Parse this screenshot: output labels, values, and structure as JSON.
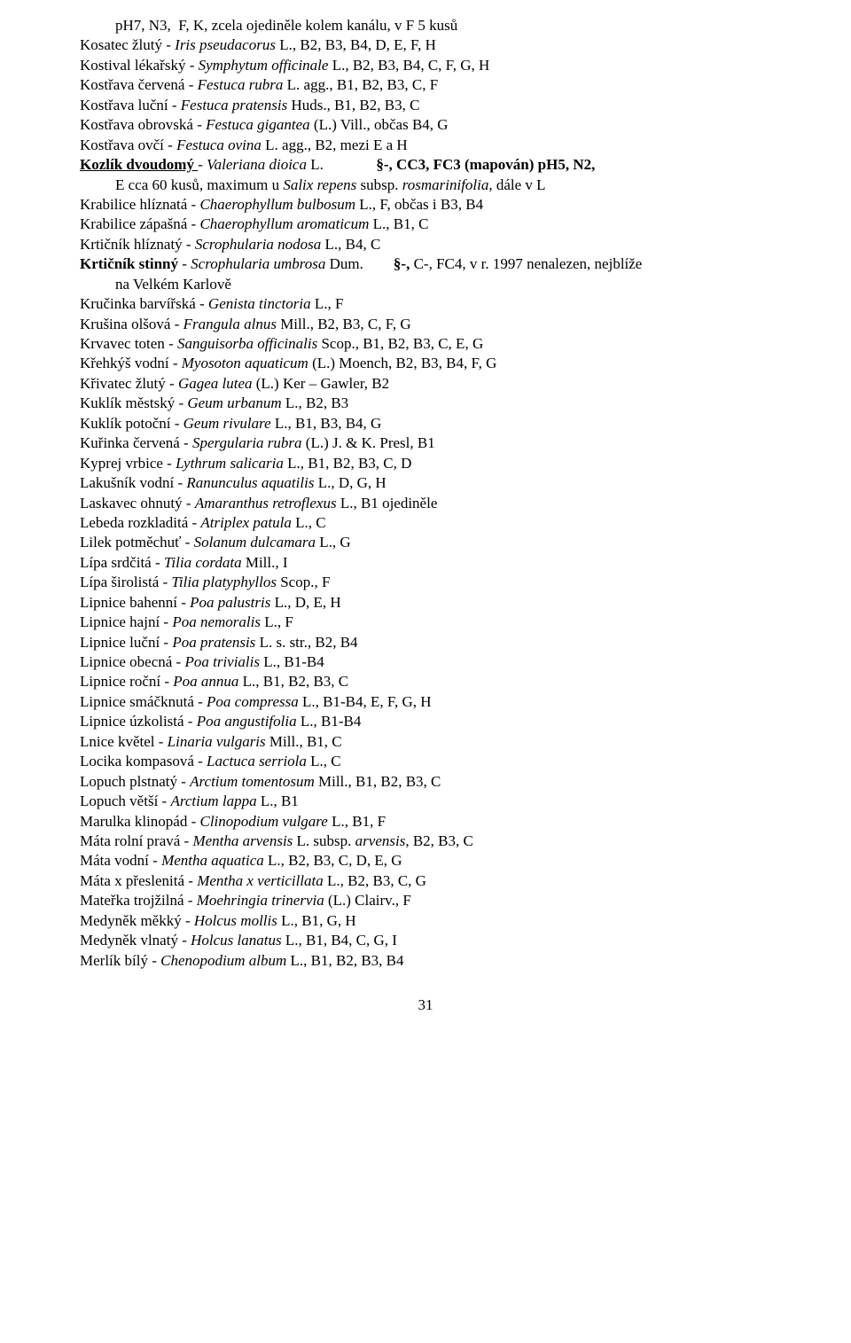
{
  "page_number": "31",
  "font": {
    "family": "Times New Roman",
    "size_pt": 12,
    "color": "#000000",
    "bg": "#ffffff"
  },
  "lines": [
    {
      "indent": true,
      "segs": [
        {
          "t": "pH7, N3,  F, K, zcela ojediněle kolem kanálu, v F 5 kusů"
        }
      ]
    },
    {
      "segs": [
        {
          "t": "Kosatec žlutý - "
        },
        {
          "t": "Iris pseudacorus ",
          "i": true
        },
        {
          "t": "L., B2, B3, B4, D, E, F, H"
        }
      ]
    },
    {
      "segs": [
        {
          "t": "Kostival lékařský - "
        },
        {
          "t": "Symphytum officinale ",
          "i": true
        },
        {
          "t": "L., B2, B3, B4, C, F, G, H"
        }
      ]
    },
    {
      "segs": [
        {
          "t": "Kostřava červená - "
        },
        {
          "t": "Festuca rubra ",
          "i": true
        },
        {
          "t": "L. agg., B1, B2, B3, C, F"
        }
      ]
    },
    {
      "segs": [
        {
          "t": "Kostřava luční - "
        },
        {
          "t": "Festuca pratensis ",
          "i": true
        },
        {
          "t": "Huds., B1, B2, B3, C"
        }
      ]
    },
    {
      "segs": [
        {
          "t": "Kostřava obrovská - "
        },
        {
          "t": "Festuca gigantea ",
          "i": true
        },
        {
          "t": "(L.) Vill., občas B4, G"
        }
      ]
    },
    {
      "segs": [
        {
          "t": "Kostřava ovčí - "
        },
        {
          "t": "Festuca ovina ",
          "i": true
        },
        {
          "t": "L. agg., B2, mezi E a H"
        }
      ]
    },
    {
      "segs": [
        {
          "t": "Kozlík dvoudomý ",
          "b": true,
          "u": true
        },
        {
          "t": "- "
        },
        {
          "t": "Valeriana dioica ",
          "i": true
        },
        {
          "t": "L.              "
        },
        {
          "t": "§-, CC3, FC3 (mapován) pH5, N2,",
          "b": true
        }
      ]
    },
    {
      "indent": true,
      "segs": [
        {
          "t": "E cca 60 kusů, maximum u "
        },
        {
          "t": "Salix repens ",
          "i": true
        },
        {
          "t": "subsp. "
        },
        {
          "t": "rosmarinifolia",
          "i": true
        },
        {
          "t": ", dále v L"
        }
      ]
    },
    {
      "segs": [
        {
          "t": "Krabilice hlíznatá - "
        },
        {
          "t": "Chaerophyllum bulbosum ",
          "i": true
        },
        {
          "t": "L., F, občas i B3, B4"
        }
      ]
    },
    {
      "segs": [
        {
          "t": "Krabilice zápašná - "
        },
        {
          "t": "Chaerophyllum aromaticum ",
          "i": true
        },
        {
          "t": "L., B1, C"
        }
      ]
    },
    {
      "segs": [
        {
          "t": "Krtičník hlíznatý - "
        },
        {
          "t": "Scrophularia nodosa ",
          "i": true
        },
        {
          "t": "L., B4, C"
        }
      ]
    },
    {
      "segs": [
        {
          "t": "Krtičník stinný",
          "b": true
        },
        {
          "t": " - "
        },
        {
          "t": "Scrophularia umbrosa ",
          "i": true
        },
        {
          "t": "Dum.        "
        },
        {
          "t": "§-, ",
          "b": true
        },
        {
          "t": "C-, FC4, v r. 1997 nenalezen, nejblíže"
        }
      ]
    },
    {
      "indent": true,
      "segs": [
        {
          "t": "na Velkém Karlově"
        }
      ]
    },
    {
      "segs": [
        {
          "t": "Kručinka barvířská - "
        },
        {
          "t": "Genista tinctoria ",
          "i": true
        },
        {
          "t": "L., F"
        }
      ]
    },
    {
      "segs": [
        {
          "t": "Krušina olšová - "
        },
        {
          "t": "Frangula alnus ",
          "i": true
        },
        {
          "t": "Mill., B2, B3, C, F, G"
        }
      ]
    },
    {
      "segs": [
        {
          "t": "Krvavec toten - "
        },
        {
          "t": "Sanguisorba officinalis ",
          "i": true
        },
        {
          "t": "Scop., B1, B2, B3, C, E, G"
        }
      ]
    },
    {
      "segs": [
        {
          "t": "Křehkýš vodní - "
        },
        {
          "t": "Myosoton aquaticum ",
          "i": true
        },
        {
          "t": "(L.) Moench, B2, B3, B4, F, G"
        }
      ]
    },
    {
      "segs": [
        {
          "t": "Křivatec žlutý - "
        },
        {
          "t": "Gagea lutea ",
          "i": true
        },
        {
          "t": "(L.) Ker – Gawler, B2"
        }
      ]
    },
    {
      "segs": [
        {
          "t": "Kuklík městský - "
        },
        {
          "t": "Geum urbanum ",
          "i": true
        },
        {
          "t": "L., B2, B3"
        }
      ]
    },
    {
      "segs": [
        {
          "t": "Kuklík potoční - "
        },
        {
          "t": "Geum rivulare ",
          "i": true
        },
        {
          "t": "L., B1, B3, B4, G"
        }
      ]
    },
    {
      "segs": [
        {
          "t": "Kuřinka červená - "
        },
        {
          "t": "Spergularia rubra ",
          "i": true
        },
        {
          "t": "(L.) J. & K. Presl, B1"
        }
      ]
    },
    {
      "segs": [
        {
          "t": "Kyprej vrbice - "
        },
        {
          "t": "Lythrum salicaria ",
          "i": true
        },
        {
          "t": "L., B1, B2, B3, C, D"
        }
      ]
    },
    {
      "segs": [
        {
          "t": "Lakušník vodní - "
        },
        {
          "t": "Ranunculus aquatilis ",
          "i": true
        },
        {
          "t": "L., D, G, H"
        }
      ]
    },
    {
      "segs": [
        {
          "t": "Laskavec ohnutý - "
        },
        {
          "t": "Amaranthus retroflexus ",
          "i": true
        },
        {
          "t": "L., B1 ojediněle"
        }
      ]
    },
    {
      "segs": [
        {
          "t": "Lebeda rozkladitá - "
        },
        {
          "t": "Atriplex patula ",
          "i": true
        },
        {
          "t": "L., C"
        }
      ]
    },
    {
      "segs": [
        {
          "t": "Lilek potměchuť - "
        },
        {
          "t": "Solanum dulcamara ",
          "i": true
        },
        {
          "t": "L., G"
        }
      ]
    },
    {
      "segs": [
        {
          "t": "Lípa srdčitá - "
        },
        {
          "t": "Tilia cordata ",
          "i": true
        },
        {
          "t": "Mill."
        },
        {
          "t": ", ",
          "i": true
        },
        {
          "t": "I"
        }
      ]
    },
    {
      "segs": [
        {
          "t": "Lípa širolistá - "
        },
        {
          "t": "Tilia platyphyllos ",
          "i": true
        },
        {
          "t": "Scop., F"
        }
      ]
    },
    {
      "segs": [
        {
          "t": "Lipnice bahenní - "
        },
        {
          "t": "Poa palustris ",
          "i": true
        },
        {
          "t": "L., D, E, H"
        }
      ]
    },
    {
      "segs": [
        {
          "t": "Lipnice hajní - "
        },
        {
          "t": "Poa nemoralis ",
          "i": true
        },
        {
          "t": "L., F"
        }
      ]
    },
    {
      "segs": [
        {
          "t": "Lipnice luční - "
        },
        {
          "t": "Poa pratensis ",
          "i": true
        },
        {
          "t": "L. s. str., B2, B4"
        }
      ]
    },
    {
      "segs": [
        {
          "t": "Lipnice obecná - "
        },
        {
          "t": "Poa trivialis ",
          "i": true
        },
        {
          "t": "L., B1-B4"
        }
      ]
    },
    {
      "segs": [
        {
          "t": "Lipnice roční - "
        },
        {
          "t": "Poa annua ",
          "i": true
        },
        {
          "t": "L., B1, B2, B3, C"
        }
      ]
    },
    {
      "segs": [
        {
          "t": "Lipnice smáčknutá - "
        },
        {
          "t": "Poa compressa ",
          "i": true
        },
        {
          "t": "L., B1-B4, E, F, G, H"
        }
      ]
    },
    {
      "segs": [
        {
          "t": "Lipnice úzkolistá - "
        },
        {
          "t": "Poa angustifolia ",
          "i": true
        },
        {
          "t": "L., B1-B4"
        }
      ]
    },
    {
      "segs": [
        {
          "t": "Lnice květel - "
        },
        {
          "t": "Linaria vulgaris ",
          "i": true
        },
        {
          "t": "Mill., B1, C"
        }
      ]
    },
    {
      "segs": [
        {
          "t": "Locika kompasová - "
        },
        {
          "t": "Lactuca serriola ",
          "i": true
        },
        {
          "t": "L., C"
        }
      ]
    },
    {
      "segs": [
        {
          "t": "Lopuch plstnatý - "
        },
        {
          "t": "Arctium tomentosum ",
          "i": true
        },
        {
          "t": "Mill., B1, B2, B3, C"
        }
      ]
    },
    {
      "segs": [
        {
          "t": "Lopuch větší - "
        },
        {
          "t": "Arctium lappa ",
          "i": true
        },
        {
          "t": "L., B1"
        }
      ]
    },
    {
      "segs": [
        {
          "t": "Marulka klinopád - "
        },
        {
          "t": "Clinopodium vulgare ",
          "i": true
        },
        {
          "t": "L., B1, F"
        }
      ]
    },
    {
      "segs": [
        {
          "t": "Máta rolní pravá - "
        },
        {
          "t": "Mentha arvensis ",
          "i": true
        },
        {
          "t": "L. subsp. "
        },
        {
          "t": "arvensis",
          "i": true
        },
        {
          "t": ", B2, B3, C"
        }
      ]
    },
    {
      "segs": [
        {
          "t": "Máta vodní - "
        },
        {
          "t": "Mentha aquatica ",
          "i": true
        },
        {
          "t": "L., B2, B3, C, D, E, G"
        }
      ]
    },
    {
      "segs": [
        {
          "t": "Máta x přeslenitá - "
        },
        {
          "t": "Mentha x verticillata ",
          "i": true
        },
        {
          "t": "L., B2, B3, C, G"
        }
      ]
    },
    {
      "segs": [
        {
          "t": "Mateřka trojžilná - "
        },
        {
          "t": "Moehringia trinervia ",
          "i": true
        },
        {
          "t": "(L.) Clairv., F"
        }
      ]
    },
    {
      "segs": [
        {
          "t": "Medyněk měkký - "
        },
        {
          "t": "Holcus mollis ",
          "i": true
        },
        {
          "t": "L., B1, G, H"
        }
      ]
    },
    {
      "segs": [
        {
          "t": "Medyněk vlnatý - "
        },
        {
          "t": "Holcus lanatus ",
          "i": true
        },
        {
          "t": "L., B1, B4, C, G, I"
        }
      ]
    },
    {
      "segs": [
        {
          "t": "Merlík bílý - "
        },
        {
          "t": "Chenopodium album ",
          "i": true
        },
        {
          "t": "L., B1, B2, B3, B4"
        }
      ]
    }
  ]
}
